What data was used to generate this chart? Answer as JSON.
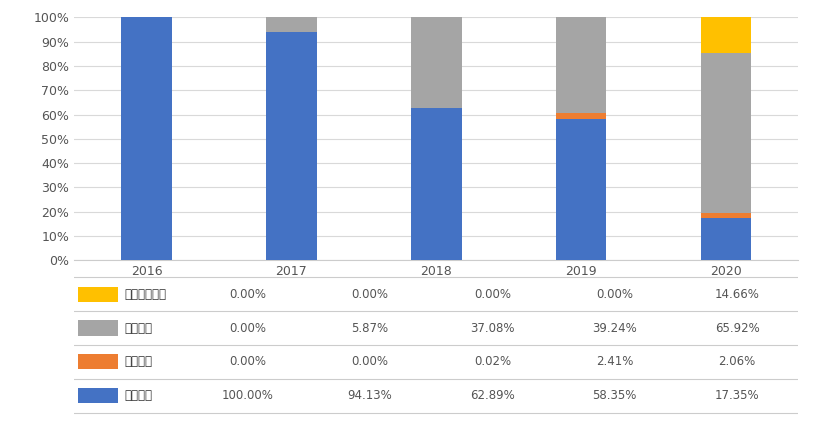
{
  "years": [
    "2016",
    "2017",
    "2018",
    "2019",
    "2020"
  ],
  "series": {
    "索拉非尼": [
      100.0,
      94.13,
      62.89,
      58.35,
      17.35
    ],
    "仑伐替尼": [
      0.0,
      0.0,
      0.02,
      2.41,
      2.06
    ],
    "瑞戈非尼": [
      0.0,
      5.87,
      37.08,
      39.24,
      65.92
    ],
    "卡瑞利珠单抗": [
      0.0,
      0.0,
      0.0,
      0.0,
      14.66
    ]
  },
  "colors": {
    "索拉非尼": "#4472C4",
    "仑伐替尼": "#ED7D31",
    "瑞戈非尼": "#A5A5A5",
    "卡瑞利珠单抗": "#FFC000"
  },
  "stack_order": [
    "索拉非尼",
    "仑伐替尼",
    "瑞戈非尼",
    "卡瑞利珠单抗"
  ],
  "table_rows": [
    [
      "卡瑞利珠单抗",
      "0.00%",
      "0.00%",
      "0.00%",
      "0.00%",
      "14.66%"
    ],
    [
      "瑞戈非尼",
      "0.00%",
      "5.87%",
      "37.08%",
      "39.24%",
      "65.92%"
    ],
    [
      "仑伐替尼",
      "0.00%",
      "0.00%",
      "0.02%",
      "2.41%",
      "2.06%"
    ],
    [
      "索拉非尼",
      "100.00%",
      "94.13%",
      "62.89%",
      "58.35%",
      "17.35%"
    ]
  ],
  "table_colors": {
    "卡瑞利珠单抗": "#FFC000",
    "瑞戈非尼": "#A5A5A5",
    "仑伐替尼": "#ED7D31",
    "索拉非尼": "#4472C4"
  },
  "ytick_labels": [
    "0%",
    "10%",
    "20%",
    "30%",
    "40%",
    "50%",
    "60%",
    "70%",
    "80%",
    "90%",
    "100%"
  ],
  "bar_width": 0.35,
  "background_color": "#FFFFFF",
  "grid_color": "#D9D9D9",
  "figsize": [
    8.23,
    4.34
  ],
  "dpi": 100
}
